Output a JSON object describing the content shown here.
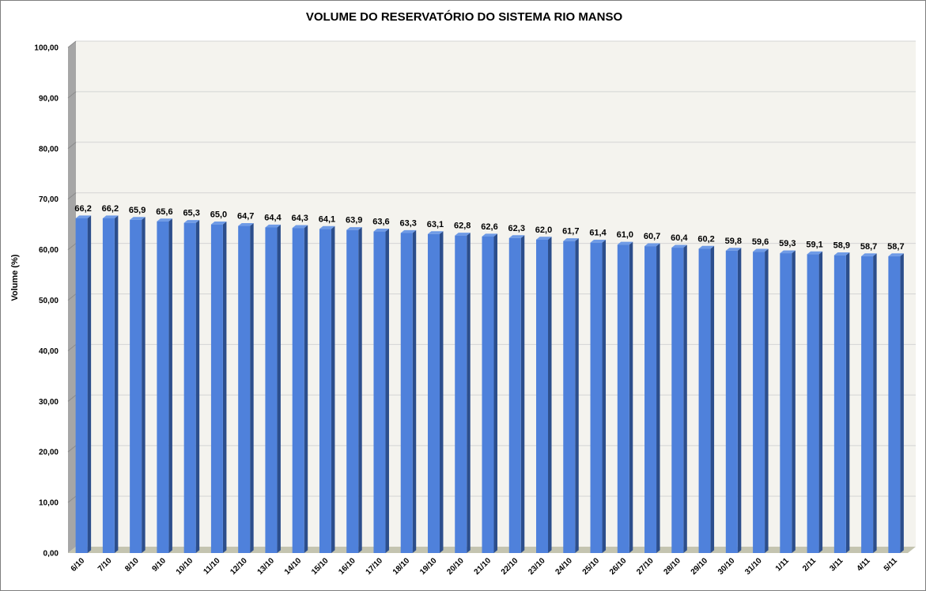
{
  "chart_data": {
    "type": "bar",
    "title": "VOLUME DO RESERVATÓRIO DO SISTEMA RIO MANSO",
    "ylabel": "Volume (%)",
    "xlabel": "",
    "ylim": [
      0,
      100
    ],
    "ytick_step": 10,
    "ytick_labels": [
      "0,00",
      "10,00",
      "20,00",
      "30,00",
      "40,00",
      "50,00",
      "60,00",
      "70,00",
      "80,00",
      "90,00",
      "100,00"
    ],
    "grid": true,
    "legend": "none",
    "categories": [
      "6/10",
      "7/10",
      "8/10",
      "9/10",
      "10/10",
      "11/10",
      "12/10",
      "13/10",
      "14/10",
      "15/10",
      "16/10",
      "17/10",
      "18/10",
      "19/10",
      "20/10",
      "21/10",
      "22/10",
      "23/10",
      "24/10",
      "25/10",
      "26/10",
      "27/10",
      "28/10",
      "29/10",
      "30/10",
      "31/10",
      "1/11",
      "2/11",
      "3/11",
      "4/11",
      "5/11"
    ],
    "values": [
      66.2,
      66.2,
      65.9,
      65.6,
      65.3,
      65.0,
      64.7,
      64.4,
      64.3,
      64.1,
      63.9,
      63.6,
      63.3,
      63.1,
      62.8,
      62.6,
      62.3,
      62.0,
      61.7,
      61.4,
      61.0,
      60.7,
      60.4,
      60.2,
      59.8,
      59.6,
      59.3,
      59.1,
      58.9,
      58.7,
      58.7
    ],
    "data_labels": [
      "66,2",
      "66,2",
      "65,9",
      "65,6",
      "65,3",
      "65,0",
      "64,7",
      "64,4",
      "64,3",
      "64,1",
      "63,9",
      "63,6",
      "63,3",
      "63,1",
      "62,8",
      "62,6",
      "62,3",
      "62,0",
      "61,7",
      "61,4",
      "61,0",
      "60,7",
      "60,4",
      "60,2",
      "59,8",
      "59,6",
      "59,3",
      "59,1",
      "58,9",
      "58,7",
      "58,7"
    ],
    "colors": {
      "bar_front": "#4f81db",
      "bar_side": "#2c4e8c",
      "bar_top": "#6f9be6",
      "plot_bg": "#f4f3ee",
      "back_wall": "#f4f3ee",
      "side_wall": "#a6a6a6",
      "floor": "#c4c4b0",
      "grid": "#d4d4d4"
    }
  }
}
